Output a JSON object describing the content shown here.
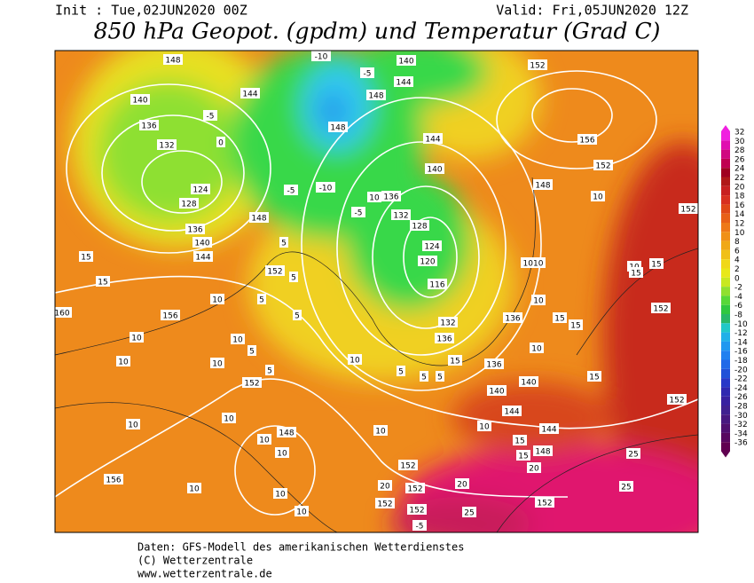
{
  "header": {
    "init": "Init : Tue,02JUN2020 00Z",
    "valid": "Valid: Fri,05JUN2020 12Z",
    "title": "850 hPa Geopot. (gpdm) und Temperatur (Grad C)"
  },
  "colorbar": {
    "labels": [
      32,
      30,
      28,
      26,
      24,
      22,
      20,
      18,
      16,
      14,
      12,
      10,
      8,
      6,
      4,
      2,
      0,
      -2,
      -4,
      -6,
      -8,
      -10,
      -12,
      -14,
      -16,
      -18,
      -20,
      -22,
      -24,
      -26,
      -28,
      -30,
      -32,
      -34,
      -36
    ]
  },
  "map": {
    "contour_labels": [
      148,
      140,
      136,
      132,
      124,
      128,
      136,
      140,
      144,
      148,
      152,
      156,
      160,
      144,
      148,
      148,
      140,
      144,
      144,
      140,
      136,
      132,
      128,
      124,
      120,
      116,
      132,
      136,
      136,
      136,
      140,
      140,
      144,
      144,
      148,
      152,
      156,
      152,
      148,
      152,
      152,
      152,
      152,
      148,
      156,
      152,
      152,
      152,
      152,
      152,
      10,
      10,
      10,
      10,
      10,
      10,
      10,
      10,
      10,
      10,
      10,
      10,
      10,
      10,
      10,
      10,
      10,
      10,
      10,
      5,
      5,
      5,
      5,
      5,
      5,
      5,
      5,
      5,
      15,
      15,
      15,
      15,
      15,
      15,
      15,
      15,
      15,
      15,
      20,
      20,
      20,
      25,
      25,
      25,
      -5,
      -5,
      -10,
      -10,
      -5,
      -5,
      0,
      -5,
      10,
      1010
    ]
  },
  "footer": {
    "lines": [
      "Daten: GFS-Modell des amerikanischen Wetterdienstes",
      "(C) Wetterzentrale",
      "www.wetterzentrale.de"
    ]
  }
}
